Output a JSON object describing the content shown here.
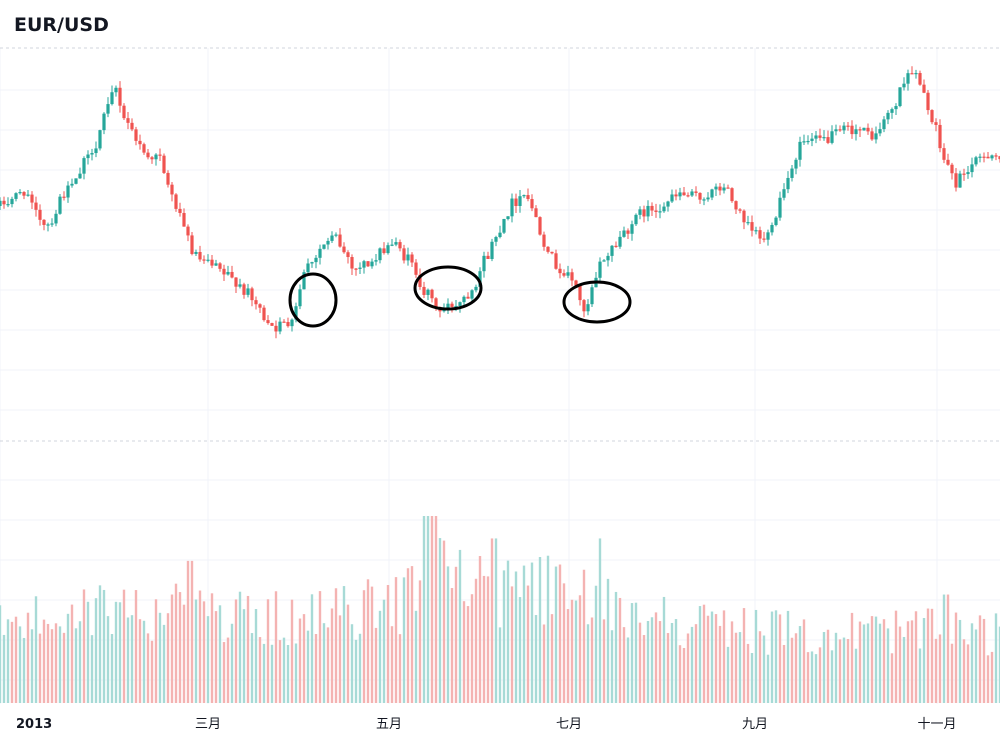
{
  "header": {
    "title": "EUR/USD"
  },
  "colors": {
    "up": "#26a69a",
    "down": "#ef5350",
    "vol_up": "#a7dad6",
    "vol_down": "#f4b3b2",
    "grid": "#f0f3fa",
    "separator": "#d1d4dc",
    "annotation": "#000000"
  },
  "chart_data": {
    "type": "candlestick",
    "title": "EUR/USD",
    "x_axis": {
      "ticks": [
        "2013",
        "三月",
        "五月",
        "七月",
        "九月",
        "十一月"
      ]
    },
    "grid": true,
    "panes": [
      "price",
      "volume"
    ],
    "price_trend": [
      {
        "day": 0,
        "close": 0.6
      },
      {
        "day": 10,
        "close": 0.64
      },
      {
        "day": 14,
        "close": 0.58
      },
      {
        "day": 20,
        "close": 0.55
      },
      {
        "day": 24,
        "close": 0.62
      },
      {
        "day": 30,
        "close": 0.66
      },
      {
        "day": 38,
        "close": 0.76
      },
      {
        "day": 46,
        "close": 0.9
      },
      {
        "day": 50,
        "close": 0.83
      },
      {
        "day": 57,
        "close": 0.74
      },
      {
        "day": 64,
        "close": 0.72
      },
      {
        "day": 70,
        "close": 0.6
      },
      {
        "day": 78,
        "close": 0.47
      },
      {
        "day": 86,
        "close": 0.44
      },
      {
        "day": 96,
        "close": 0.4
      },
      {
        "day": 104,
        "close": 0.33
      },
      {
        "day": 110,
        "close": 0.29
      },
      {
        "day": 116,
        "close": 0.3
      },
      {
        "day": 122,
        "close": 0.44
      },
      {
        "day": 128,
        "close": 0.49
      },
      {
        "day": 134,
        "close": 0.52
      },
      {
        "day": 142,
        "close": 0.44
      },
      {
        "day": 150,
        "close": 0.46
      },
      {
        "day": 156,
        "close": 0.51
      },
      {
        "day": 164,
        "close": 0.46
      },
      {
        "day": 170,
        "close": 0.38
      },
      {
        "day": 176,
        "close": 0.33
      },
      {
        "day": 182,
        "close": 0.35
      },
      {
        "day": 188,
        "close": 0.38
      },
      {
        "day": 196,
        "close": 0.49
      },
      {
        "day": 204,
        "close": 0.6
      },
      {
        "day": 210,
        "close": 0.64
      },
      {
        "day": 216,
        "close": 0.54
      },
      {
        "day": 222,
        "close": 0.45
      },
      {
        "day": 230,
        "close": 0.4
      },
      {
        "day": 234,
        "close": 0.32
      },
      {
        "day": 240,
        "close": 0.45
      },
      {
        "day": 248,
        "close": 0.52
      },
      {
        "day": 256,
        "close": 0.58
      },
      {
        "day": 264,
        "close": 0.6
      },
      {
        "day": 272,
        "close": 0.63
      },
      {
        "day": 280,
        "close": 0.62
      },
      {
        "day": 290,
        "close": 0.65
      },
      {
        "day": 298,
        "close": 0.55
      },
      {
        "day": 306,
        "close": 0.51
      },
      {
        "day": 312,
        "close": 0.62
      },
      {
        "day": 320,
        "close": 0.76
      },
      {
        "day": 330,
        "close": 0.77
      },
      {
        "day": 340,
        "close": 0.8
      },
      {
        "day": 350,
        "close": 0.78
      },
      {
        "day": 358,
        "close": 0.86
      },
      {
        "day": 364,
        "close": 0.96
      },
      {
        "day": 370,
        "close": 0.88
      },
      {
        "day": 376,
        "close": 0.75
      },
      {
        "day": 382,
        "close": 0.66
      },
      {
        "day": 388,
        "close": 0.7
      },
      {
        "day": 396,
        "close": 0.74
      },
      {
        "day": 400,
        "close": 0.72
      }
    ],
    "volume_trend": [
      {
        "day": 0,
        "volume": 0.45
      },
      {
        "day": 40,
        "volume": 0.55
      },
      {
        "day": 80,
        "volume": 0.52
      },
      {
        "day": 120,
        "volume": 0.48
      },
      {
        "day": 160,
        "volume": 0.58
      },
      {
        "day": 172,
        "volume": 0.95
      },
      {
        "day": 182,
        "volume": 0.72
      },
      {
        "day": 200,
        "volume": 0.62
      },
      {
        "day": 220,
        "volume": 0.66
      },
      {
        "day": 240,
        "volume": 0.58
      },
      {
        "day": 280,
        "volume": 0.45
      },
      {
        "day": 320,
        "volume": 0.4
      },
      {
        "day": 360,
        "volume": 0.42
      },
      {
        "day": 400,
        "volume": 0.4
      }
    ],
    "volume_peaks": [
      {
        "day": 76,
        "volume": 0.76
      },
      {
        "day": 170,
        "volume": 1.0
      },
      {
        "day": 174,
        "volume": 1.0
      },
      {
        "day": 198,
        "volume": 0.88
      },
      {
        "day": 240,
        "volume": 0.88
      },
      {
        "day": 378,
        "volume": 0.58
      }
    ],
    "annotations": [
      {
        "type": "circle",
        "day": 125
      },
      {
        "type": "circle",
        "day": 180
      },
      {
        "type": "circle",
        "day": 238
      }
    ]
  }
}
